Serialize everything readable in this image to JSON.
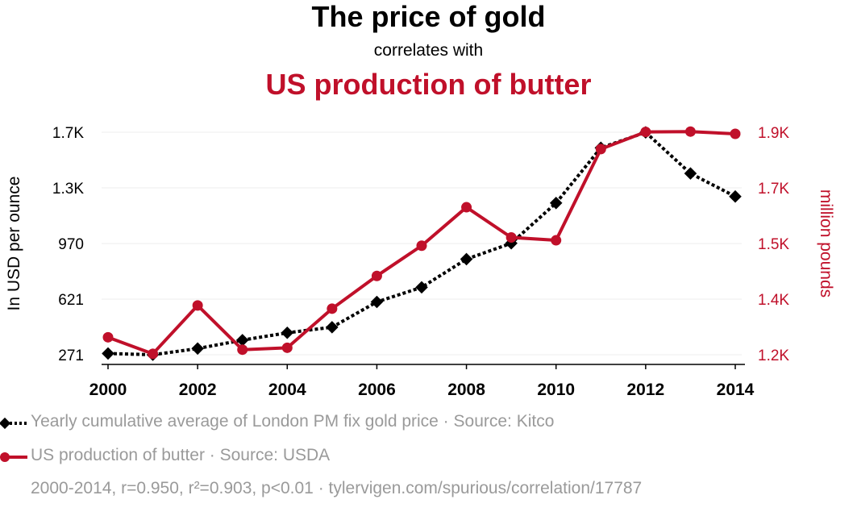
{
  "title": "The price of gold",
  "subtitle_connector": "correlates with",
  "subtitle": "US production of butter",
  "colors": {
    "gold_series": "#000000",
    "butter_series": "#c0102a",
    "muted_text": "#9a9a9a"
  },
  "legend": [
    {
      "label": "Yearly cumulative average of London PM fix gold price · Source: Kitco",
      "marker": "diamond",
      "line": "dotted"
    },
    {
      "label": "US production of butter · Source: USDA",
      "marker": "circle",
      "line": "solid"
    }
  ],
  "footnote": "2000-2014, r=0.950, r²=0.903, p<0.01 · tylervigen.com/spurious/correlation/17787",
  "chart_data": {
    "type": "line",
    "x": [
      2000,
      2001,
      2002,
      2003,
      2004,
      2005,
      2006,
      2007,
      2008,
      2009,
      2010,
      2011,
      2012,
      2013,
      2014
    ],
    "x_ticks": [
      "2000",
      "2002",
      "2004",
      "2006",
      "2008",
      "2010",
      "2012",
      "2014"
    ],
    "grid": true,
    "y_left": {
      "label": "In USD per ounce",
      "ticks": [
        "271",
        "621",
        "970",
        "1.3K",
        "1.7K"
      ],
      "tick_values": [
        271,
        621,
        970,
        1320,
        1670
      ],
      "range": [
        271,
        1670
      ]
    },
    "y_right": {
      "label": "million pounds",
      "ticks": [
        "1.2K",
        "1.4K",
        "1.5K",
        "1.7K",
        "1.9K"
      ],
      "tick_values": [
        1200,
        1375,
        1550,
        1725,
        1900
      ],
      "range": [
        1200,
        1900
      ]
    },
    "series": [
      {
        "name": "Yearly cumulative average of London PM fix gold price",
        "axis": "left",
        "values": [
          279,
          271,
          310,
          363,
          409,
          444,
          603,
          695,
          872,
          972,
          1225,
          1572,
          1669,
          1411,
          1266
        ]
      },
      {
        "name": "US production of butter",
        "axis": "right",
        "values": [
          1255,
          1203,
          1355,
          1216,
          1222,
          1345,
          1448,
          1543,
          1664,
          1569,
          1560,
          1847,
          1901,
          1902,
          1895
        ]
      }
    ]
  }
}
